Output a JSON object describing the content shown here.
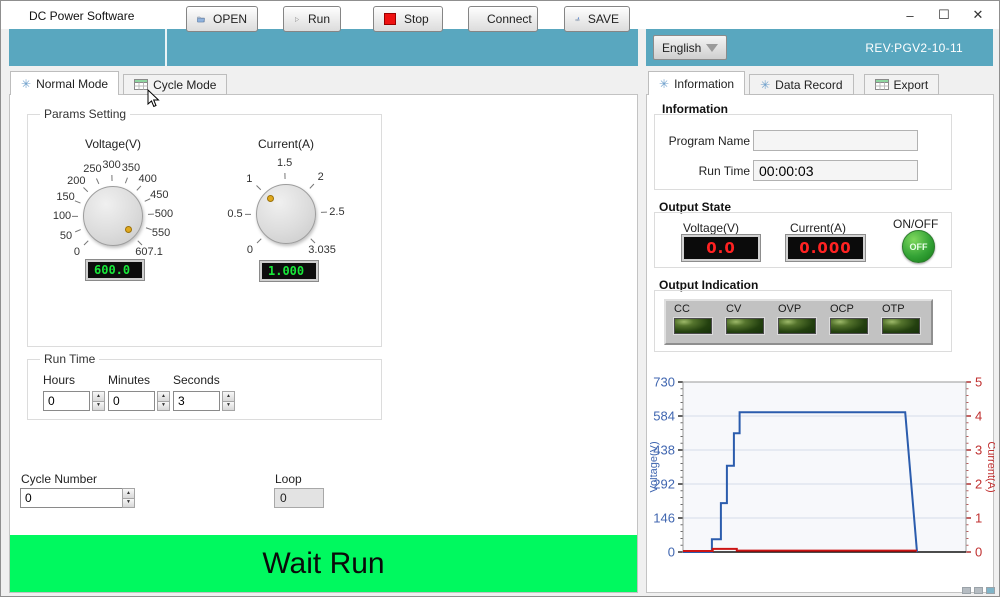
{
  "window": {
    "title": "DC Power Software",
    "controls": {
      "minimize": "–",
      "maximize": "☐",
      "close": "✕"
    }
  },
  "toolbar": {
    "buttons": {
      "open": "OPEN",
      "run": "Run",
      "stop": "Stop",
      "connect": "Connect",
      "save": "SAVE"
    },
    "language": "English",
    "revision": "REV:PGV2-10-11"
  },
  "left_tabs": [
    {
      "label": "Normal Mode"
    },
    {
      "label": "Cycle Mode"
    }
  ],
  "params": {
    "group_label": "Params Setting",
    "voltage": {
      "label": "Voltage(V)",
      "display": "600.0",
      "value": 600,
      "max": 607.1,
      "ticks": [
        {
          "value": 0,
          "label": "0"
        },
        {
          "value": 50,
          "label": "50"
        },
        {
          "value": 100,
          "label": "100"
        },
        {
          "value": 150,
          "label": "150"
        },
        {
          "value": 200,
          "label": "200"
        },
        {
          "value": 250,
          "label": "250"
        },
        {
          "value": 300,
          "label": "300"
        },
        {
          "value": 350,
          "label": "350"
        },
        {
          "value": 400,
          "label": "400"
        },
        {
          "value": 450,
          "label": "450"
        },
        {
          "value": 500,
          "label": "500"
        },
        {
          "value": 550,
          "label": "550"
        },
        {
          "value": 607.1,
          "label": "607.1"
        }
      ]
    },
    "current": {
      "label": "Current(A)",
      "display": "1.000",
      "value": 1,
      "max": 3.035,
      "ticks": [
        {
          "value": 0,
          "label": "0"
        },
        {
          "value": 0.5,
          "label": "0.5"
        },
        {
          "value": 1,
          "label": "1"
        },
        {
          "value": 1.5,
          "label": "1.5"
        },
        {
          "value": 2,
          "label": "2"
        },
        {
          "value": 2.5,
          "label": "2.5"
        },
        {
          "value": 3.035,
          "label": "3.035"
        }
      ]
    }
  },
  "run_time": {
    "group_label": "Run Time",
    "fields": [
      {
        "label": "Hours",
        "value": "0"
      },
      {
        "label": "Minutes",
        "value": "0"
      },
      {
        "label": "Seconds",
        "value": "3"
      }
    ]
  },
  "cycle": {
    "label": "Cycle Number",
    "value": "0",
    "loop_label": "Loop",
    "loop_value": "0"
  },
  "status_banner": "Wait Run",
  "right_tabs": [
    {
      "label": "Information"
    },
    {
      "label": "Data Record"
    },
    {
      "label": "Export"
    }
  ],
  "information": {
    "heading": "Information",
    "program_name_label": "Program Name",
    "program_name_value": "",
    "run_time_label": "Run Time",
    "run_time_value": "00:00:03"
  },
  "output_state": {
    "heading": "Output State",
    "voltage_label": "Voltage(V)",
    "voltage_value": "0.0",
    "current_label": "Current(A)",
    "current_value": "0.000",
    "onoff_label": "ON/OFF",
    "onoff_text": "OFF"
  },
  "output_indication": {
    "heading": "Output Indication",
    "leds": [
      "CC",
      "CV",
      "OVP",
      "OCP",
      "OTP"
    ]
  },
  "chart_data": {
    "type": "line",
    "grid": true,
    "x_range": [
      0,
      1
    ],
    "y_left": {
      "label": "Voltage(V)",
      "min": 0,
      "max": 730,
      "ticks": [
        0,
        146,
        292,
        438,
        584,
        730
      ],
      "color": "#4066b0"
    },
    "y_right": {
      "label": "Current(A)",
      "min": 0,
      "max": 5,
      "ticks": [
        0,
        1,
        2,
        3,
        4,
        5
      ],
      "color": "#c03030"
    },
    "series": [
      {
        "name": "Voltage(V)",
        "axis": "left",
        "color": "#2b5cad",
        "points": [
          [
            0,
            0
          ],
          [
            0.102,
            0
          ],
          [
            0.102,
            55
          ],
          [
            0.134,
            55
          ],
          [
            0.134,
            210
          ],
          [
            0.155,
            210
          ],
          [
            0.155,
            370
          ],
          [
            0.18,
            370
          ],
          [
            0.18,
            510
          ],
          [
            0.2,
            510
          ],
          [
            0.2,
            600
          ],
          [
            0.785,
            600
          ],
          [
            0.827,
            0
          ]
        ]
      },
      {
        "name": "Current(A)",
        "axis": "right",
        "color": "#cc1414",
        "points": [
          [
            0,
            0.03
          ],
          [
            0.105,
            0.03
          ],
          [
            0.105,
            0.09
          ],
          [
            0.19,
            0.09
          ],
          [
            0.19,
            0.04
          ],
          [
            0.827,
            0.04
          ]
        ]
      }
    ]
  }
}
